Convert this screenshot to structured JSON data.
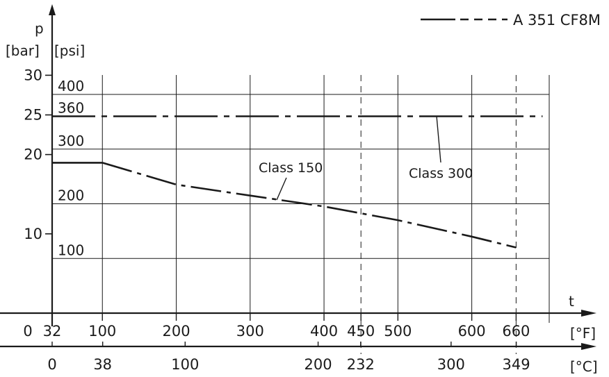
{
  "chart_data": {
    "type": "line",
    "legend": {
      "label": "A 351 CF8M",
      "position": "top-right"
    },
    "axes": {
      "y_primary_label": "p",
      "y_bar_unit": "[bar]",
      "y_psi_unit": "[psi]",
      "x_label": "t",
      "x_f_unit": "[°F]",
      "x_c_unit": "[°C]"
    },
    "y_bar_ticks": [
      {
        "value": 10,
        "label": "10"
      },
      {
        "value": 20,
        "label": "20"
      },
      {
        "value": 25,
        "label": "25"
      },
      {
        "value": 30,
        "label": "30"
      }
    ],
    "y_psi_ticks": [
      {
        "value": 100,
        "label": "100"
      },
      {
        "value": 200,
        "label": "200"
      },
      {
        "value": 300,
        "label": "300"
      },
      {
        "value": 360,
        "label": "360"
      },
      {
        "value": 400,
        "label": "400"
      }
    ],
    "x_f_ticks": [
      {
        "value": 0,
        "label": "0"
      },
      {
        "value": 32,
        "label": "32"
      },
      {
        "value": 100,
        "label": "100"
      },
      {
        "value": 200,
        "label": "200"
      },
      {
        "value": 300,
        "label": "300"
      },
      {
        "value": 400,
        "label": "400"
      },
      {
        "value": 450,
        "label": "450"
      },
      {
        "value": 500,
        "label": "500"
      },
      {
        "value": 600,
        "label": "600"
      },
      {
        "value": 660,
        "label": "660"
      }
    ],
    "x_c_ticks": [
      {
        "value": 0,
        "label": "0"
      },
      {
        "value": 38,
        "label": "38"
      },
      {
        "value": 100,
        "label": "100"
      },
      {
        "value": 200,
        "label": "200"
      },
      {
        "value": 232,
        "label": "232"
      },
      {
        "value": 300,
        "label": "300"
      },
      {
        "value": 349,
        "label": "349"
      }
    ],
    "x_range_f": [
      32,
      750
    ],
    "y_range_psi": [
      0,
      480
    ],
    "grid": true,
    "reference_lines_f": [
      450,
      660
    ],
    "series": [
      {
        "name": "Class 150",
        "x_f": [
          32,
          100,
          200,
          300,
          400,
          500,
          600,
          660
        ],
        "y_psi": [
          275,
          275,
          235,
          215,
          195,
          170,
          140,
          120
        ]
      },
      {
        "name": "Class 300",
        "x_f": [
          32,
          660
        ],
        "y_psi": [
          360,
          360
        ]
      }
    ]
  }
}
